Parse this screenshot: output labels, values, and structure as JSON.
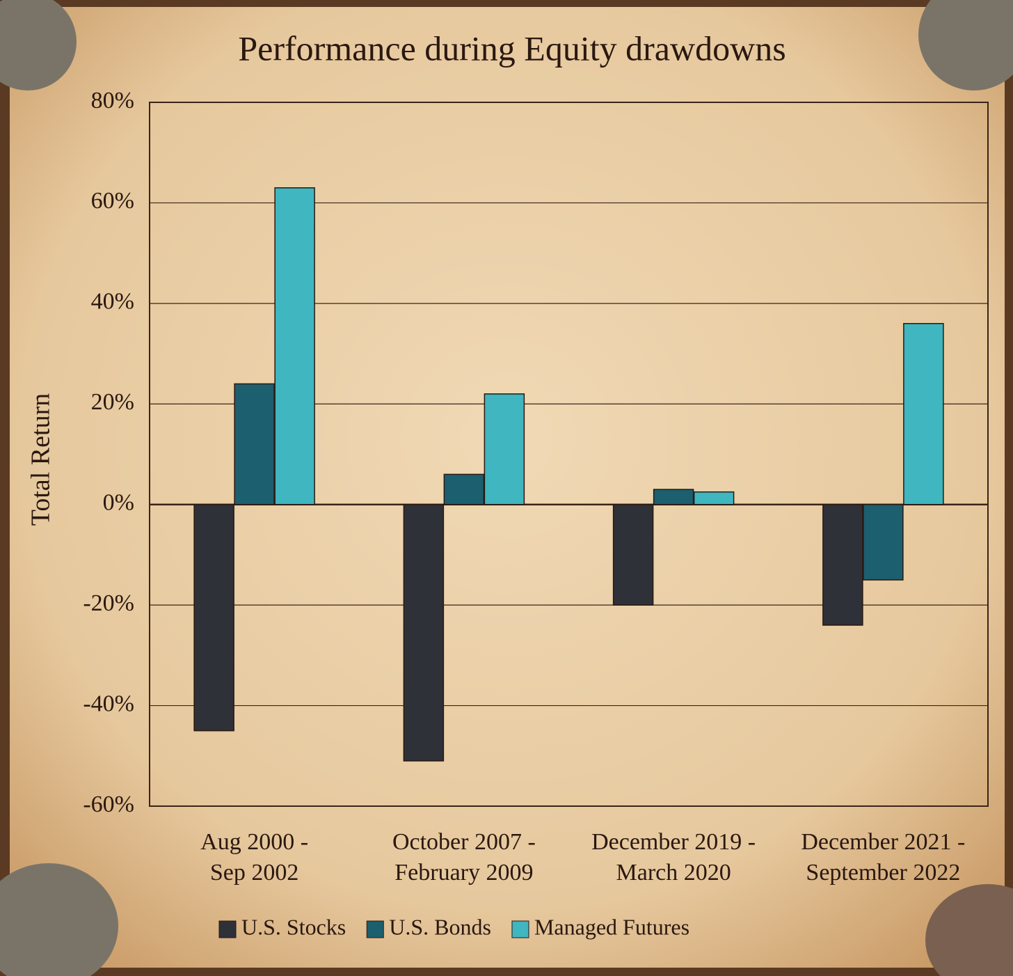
{
  "chart_data": {
    "type": "bar",
    "title": "Performance during Equity drawdowns",
    "y_label": "Total Return",
    "categories": [
      "Aug 2000 -\nSep 2002",
      "October 2007 -\nFebruary 2009",
      "December 2019 -\nMarch 2020",
      "December 2021 -\nSeptember 2022"
    ],
    "series": [
      {
        "name": "U.S. Stocks",
        "color": "#2f3139",
        "values": [
          -45,
          -51,
          -20,
          -24
        ]
      },
      {
        "name": "U.S. Bonds",
        "color": "#1c5f6f",
        "values": [
          24,
          6,
          3,
          -15
        ]
      },
      {
        "name": "Managed Futures",
        "color": "#3fb6c0",
        "values": [
          63,
          22,
          2.5,
          36
        ]
      }
    ],
    "ylim": [
      -60,
      80
    ],
    "yticks": [
      {
        "value": -60,
        "label": "-60%"
      },
      {
        "value": -40,
        "label": "-40%"
      },
      {
        "value": -20,
        "label": "-20%"
      },
      {
        "value": 0,
        "label": "0%"
      },
      {
        "value": 20,
        "label": "20%"
      },
      {
        "value": 40,
        "label": "40%"
      },
      {
        "value": 60,
        "label": "60%"
      },
      {
        "value": 80,
        "label": "80%"
      }
    ],
    "grid": true,
    "legend": "bottom"
  }
}
